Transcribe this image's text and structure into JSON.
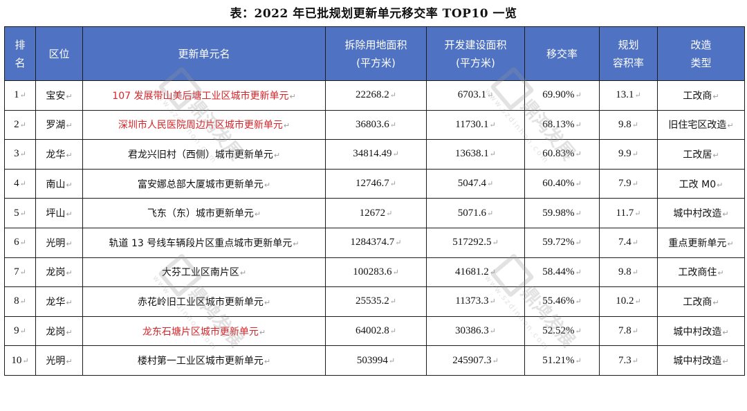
{
  "title": "表：2022 年已批规划更新单元移交率 TOP10 一览",
  "return_mark": "↵",
  "headers": {
    "rank": [
      "排",
      "名"
    ],
    "district": "区位",
    "unit_name": "更新单元名",
    "demolition_area": [
      "拆除用地面积",
      "(平方米)"
    ],
    "construction_area": [
      "开发建设面积",
      "(平方米)"
    ],
    "transfer_rate": "移交率",
    "plot_ratio": [
      "规划",
      "容积率"
    ],
    "renovation_type": [
      "改造",
      "类型"
    ]
  },
  "rows": [
    {
      "rank": "1",
      "district": "宝安",
      "name": "107 发展带山美后塘工业区城市更新单元",
      "highlight": true,
      "demolition": "22268.2",
      "construction": "6703.1",
      "rate": "69.90%",
      "ratio": "13.1",
      "type": "工改商"
    },
    {
      "rank": "2",
      "district": "罗湖",
      "name": "深圳市人民医院周边片区城市更新单元",
      "highlight": true,
      "demolition": "36803.6",
      "construction": "11730.1",
      "rate": "68.13%",
      "ratio": "9.8",
      "type": "旧住宅区改造"
    },
    {
      "rank": "3",
      "district": "龙华",
      "name": "君龙兴旧村（西侧）城市更新单元",
      "highlight": false,
      "demolition": "34814.49",
      "construction": "13638.1",
      "rate": "60.83%",
      "ratio": "9.9",
      "type": "工改居"
    },
    {
      "rank": "4",
      "district": "南山",
      "name": "富安娜总部大厦城市更新单元",
      "highlight": false,
      "demolition": "12746.7",
      "construction": "5047.4",
      "rate": "60.40%",
      "ratio": "7.9",
      "type": "工改 M0"
    },
    {
      "rank": "5",
      "district": "坪山",
      "name": "飞东（东）城市更新单元",
      "highlight": false,
      "demolition": "12672",
      "construction": "5071.6",
      "rate": "59.98%",
      "ratio": "11.7",
      "type": "城中村改造"
    },
    {
      "rank": "6",
      "district": "光明",
      "name": "轨道 13 号线车辆段片区重点城市更新单元",
      "highlight": false,
      "demolition": "1284374.7",
      "construction": "517292.5",
      "rate": "59.72%",
      "ratio": "7.4",
      "type": "重点更新单元"
    },
    {
      "rank": "7",
      "district": "龙岗",
      "name": "大芬工业区南片区",
      "highlight": false,
      "demolition": "100283.6",
      "construction": "41681.2",
      "rate": "58.44%",
      "ratio": "9.8",
      "type": "工改商住"
    },
    {
      "rank": "8",
      "district": "龙华",
      "name": "赤花岭旧工业区城市更新单元",
      "highlight": false,
      "demolition": "25535.2",
      "construction": "11373.3",
      "rate": "55.46%",
      "ratio": "10.2",
      "type": "工改商"
    },
    {
      "rank": "9",
      "district": "龙岗",
      "name": "龙东石塘片区城市更新单元",
      "highlight": true,
      "demolition": "64002.8",
      "construction": "30386.3",
      "rate": "52.52%",
      "ratio": "7.8",
      "type": "城中村改造"
    },
    {
      "rank": "10",
      "district": "光明",
      "name": "楼村第一工业区城市更新单元",
      "highlight": false,
      "demolition": "503994",
      "construction": "245907.3",
      "rate": "51.21%",
      "ratio": "7.3",
      "type": "城中村改造"
    }
  ],
  "watermark": {
    "text": "鼎鸿发展",
    "site": "www.szdinhon.com"
  },
  "colors": {
    "header_bg": "#4f72c2",
    "highlight_text": "#d8252a"
  }
}
